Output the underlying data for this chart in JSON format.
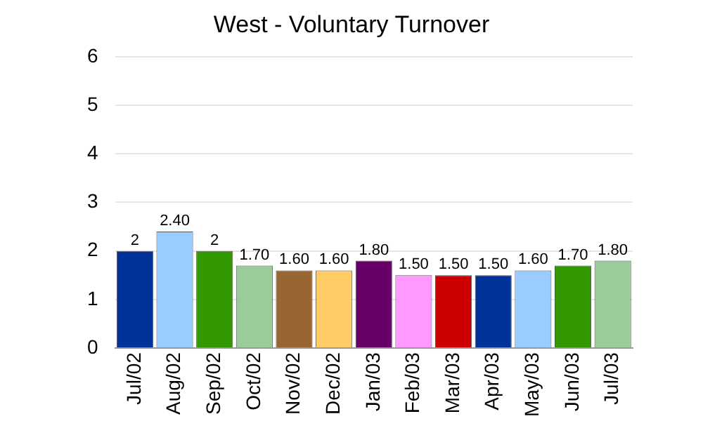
{
  "chart_data": {
    "type": "bar",
    "title": "West - Voluntary Turnover",
    "categories": [
      "Jul/02",
      "Aug/02",
      "Sep/02",
      "Oct/02",
      "Nov/02",
      "Dec/02",
      "Jan/03",
      "Feb/03",
      "Mar/03",
      "Apr/03",
      "May/03",
      "Jun/03",
      "Jul/03"
    ],
    "values": [
      2,
      2.4,
      2,
      1.7,
      1.6,
      1.6,
      1.8,
      1.5,
      1.5,
      1.5,
      1.6,
      1.7,
      1.8
    ],
    "value_labels": [
      "2",
      "2.40",
      "2",
      "1.70",
      "1.60",
      "1.60",
      "1.80",
      "1.50",
      "1.50",
      "1.50",
      "1.60",
      "1.70",
      "1.80"
    ],
    "colors": [
      "#003399",
      "#99ccff",
      "#339900",
      "#99cc99",
      "#996633",
      "#ffcc66",
      "#660066",
      "#ff99ff",
      "#cc0000",
      "#003399",
      "#99ccff",
      "#339900",
      "#99cc99"
    ],
    "ylim": [
      0,
      6
    ],
    "yticks": [
      0,
      1,
      2,
      3,
      4,
      5,
      6
    ],
    "grid": "y"
  }
}
